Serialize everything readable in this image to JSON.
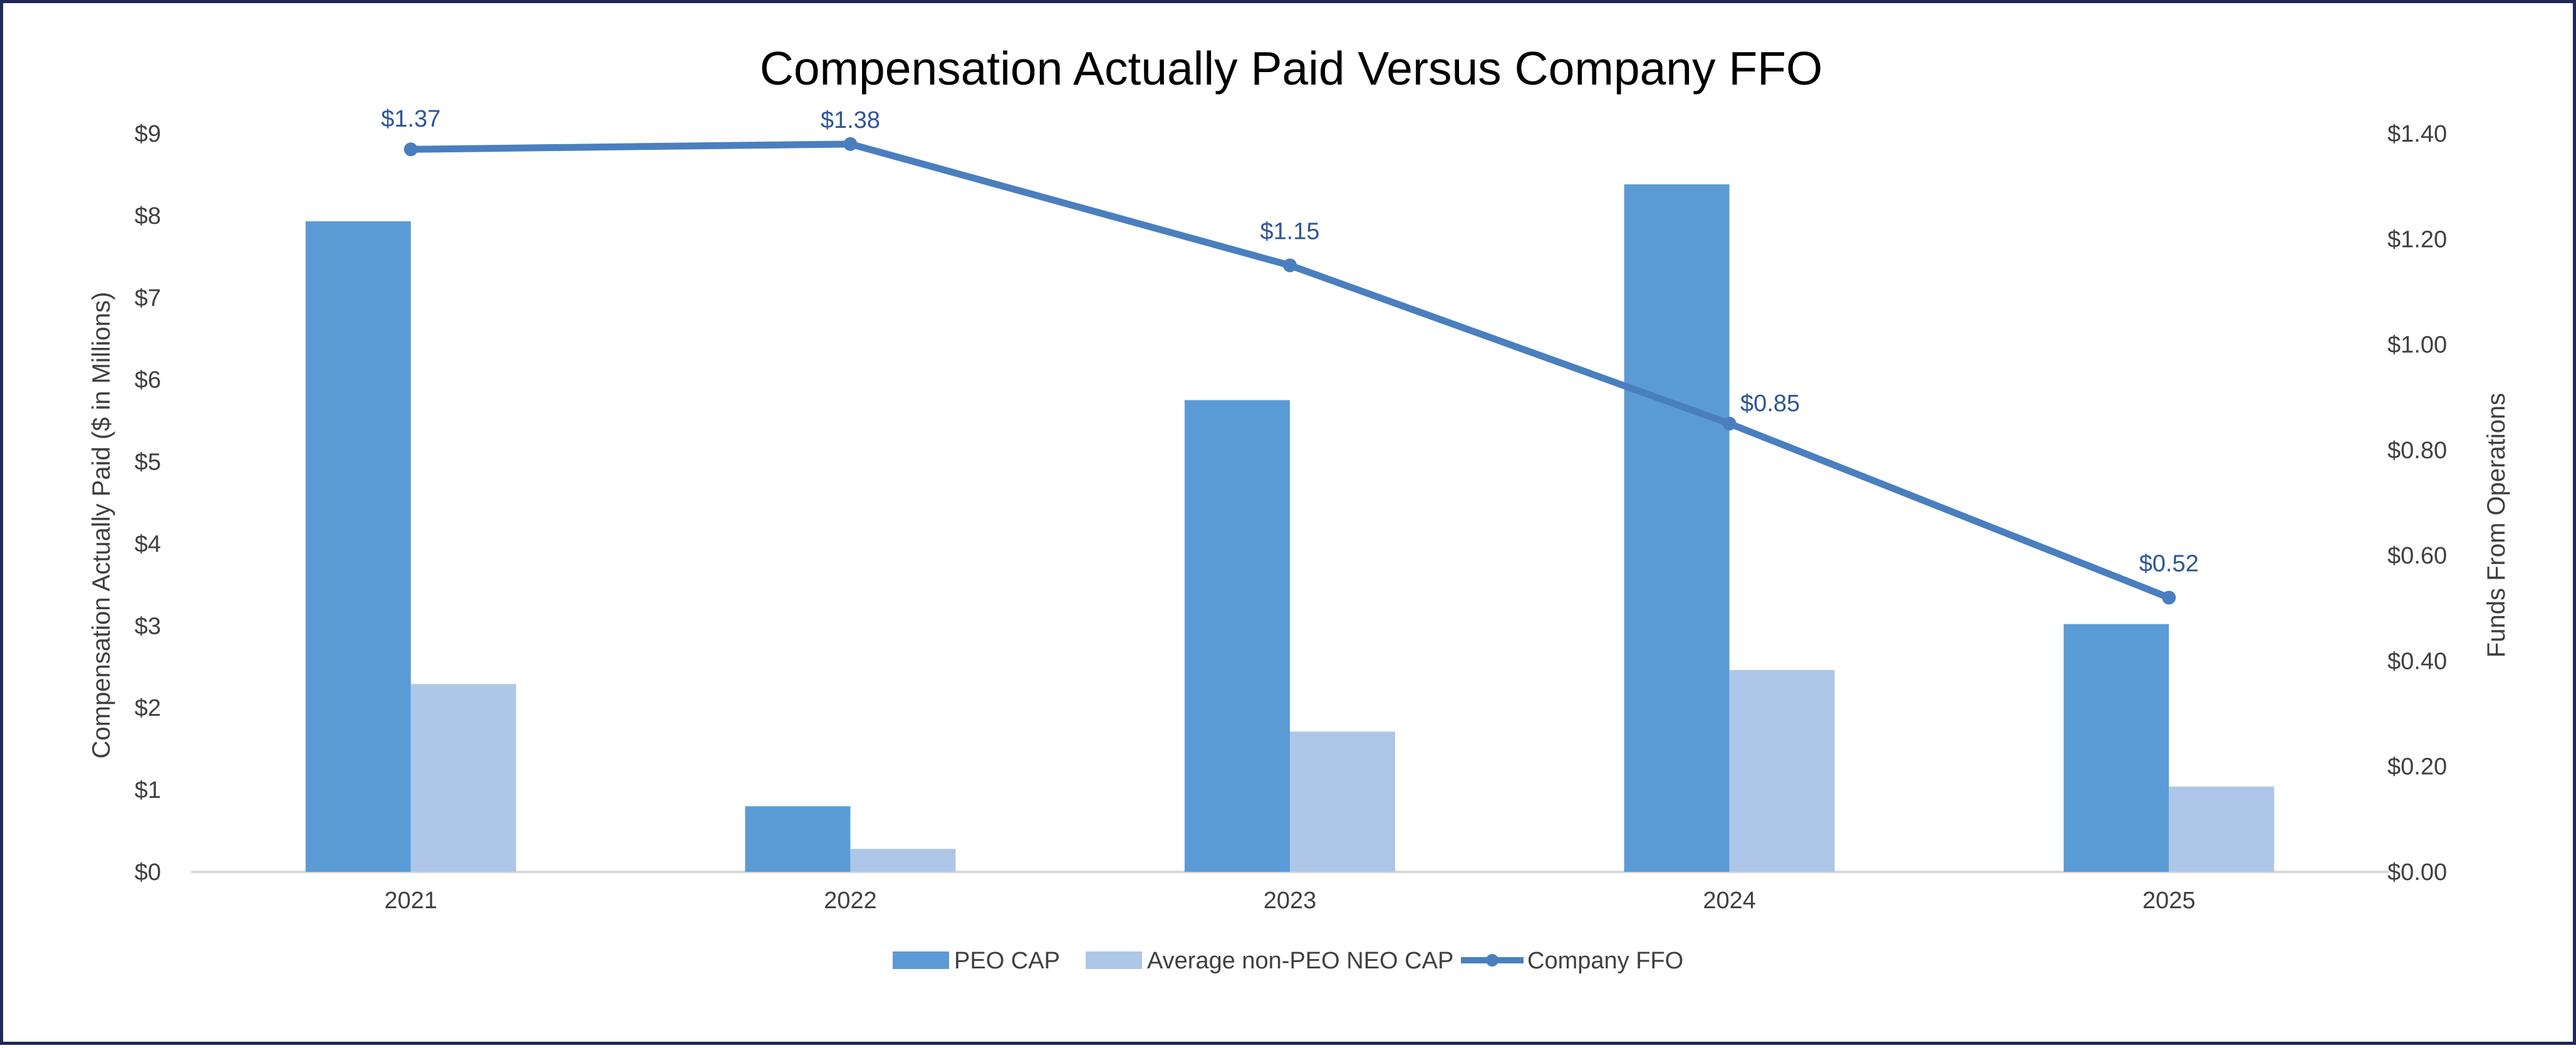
{
  "chart_data": {
    "type": "bar",
    "title": "Compensation Actually Paid Versus Company FFO",
    "categories": [
      "2021",
      "2022",
      "2023",
      "2024",
      "2025"
    ],
    "ylabel": "Compensation Actually Paid ($ in Millions)",
    "y2label": "Funds From Operations",
    "ylim": [
      0,
      9
    ],
    "y2lim": [
      0,
      1.4
    ],
    "yticks": [
      "$0",
      "$1",
      "$2",
      "$3",
      "$4",
      "$5",
      "$6",
      "$7",
      "$8",
      "$9"
    ],
    "y2ticks": [
      "0.00",
      "$0.20",
      "$0.40",
      "$0.60",
      "$0.80",
      "$1.00",
      "$1.20",
      "$1.40"
    ],
    "series": [
      {
        "name": "PEO CAP",
        "type": "bar",
        "axis": "left",
        "color": "#5b9bd5",
        "values": [
          7.93,
          0.8,
          5.75,
          8.38,
          3.02
        ]
      },
      {
        "name": "Average non-PEO NEO CAP",
        "type": "bar",
        "axis": "left",
        "color": "#aec7e8",
        "values": [
          2.29,
          0.28,
          1.71,
          2.46,
          1.04
        ]
      },
      {
        "name": "Company FFO",
        "type": "line",
        "axis": "right",
        "color": "#4a7fbf",
        "values": [
          1.37,
          1.38,
          1.15,
          0.85,
          0.52
        ],
        "labels": [
          "$1.37",
          "$1.38",
          "$1.15",
          "$0.85",
          "$0.52"
        ]
      }
    ],
    "legend": "bottom",
    "grid": false,
    "label_color": "#2e5597",
    "y2tick_zero_label": "$0.00"
  }
}
